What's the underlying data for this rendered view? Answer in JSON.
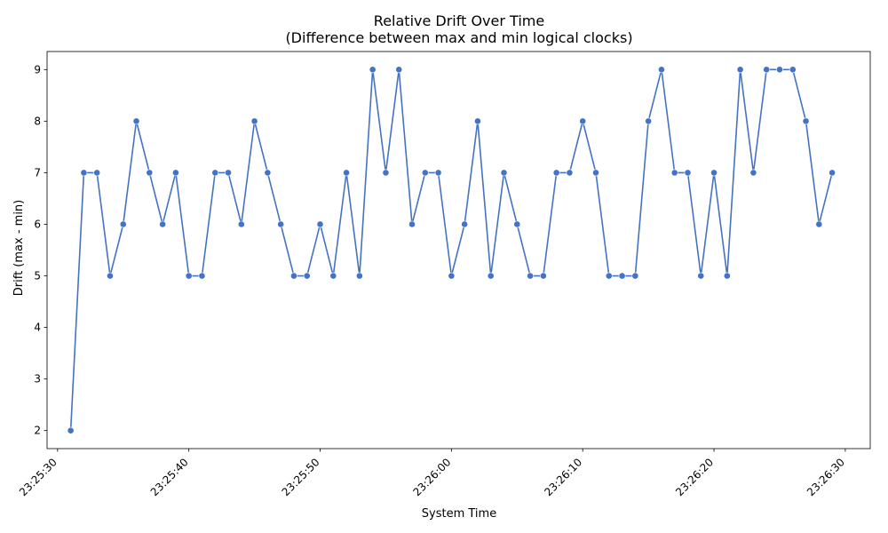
{
  "chart_data": {
    "type": "line",
    "title": "Relative Drift Over Time",
    "subtitle": "(Difference between max and min logical clocks)",
    "xlabel": "System Time",
    "ylabel": "Drift (max - min)",
    "x_tick_labels": [
      "23:25:30",
      "23:25:40",
      "23:25:50",
      "23:26:00",
      "23:26:10",
      "23:26:20",
      "23:26:30"
    ],
    "x_tick_values": [
      "23:25:30",
      "23:25:40",
      "23:25:50",
      "23:26:00",
      "23:26:10",
      "23:26:20",
      "23:26:30"
    ],
    "xlim": [
      "23:25:29.2",
      "23:26:31.9"
    ],
    "y_ticks": [
      2,
      3,
      4,
      5,
      6,
      7,
      8,
      9
    ],
    "ylim": [
      1.65,
      9.35
    ],
    "grid": false,
    "line_color": "#4472C4",
    "marker": "circle",
    "series": [
      {
        "x": [
          "23:25:31",
          "23:25:32",
          "23:25:33",
          "23:25:34",
          "23:25:35",
          "23:25:36",
          "23:25:37",
          "23:25:38",
          "23:25:39",
          "23:25:40",
          "23:25:41",
          "23:25:42",
          "23:25:43",
          "23:25:44",
          "23:25:45",
          "23:25:46",
          "23:25:47",
          "23:25:48",
          "23:25:49",
          "23:25:50",
          "23:25:51",
          "23:25:52",
          "23:25:53",
          "23:25:54",
          "23:25:55",
          "23:25:56",
          "23:25:57",
          "23:25:58",
          "23:25:59",
          "23:26:00",
          "23:26:01",
          "23:26:02",
          "23:26:03",
          "23:26:04",
          "23:26:05",
          "23:26:06",
          "23:26:07",
          "23:26:08",
          "23:26:09",
          "23:26:10",
          "23:26:11",
          "23:26:12",
          "23:26:13",
          "23:26:14",
          "23:26:15",
          "23:26:16",
          "23:26:17",
          "23:26:18",
          "23:26:19",
          "23:26:20",
          "23:26:21",
          "23:26:22",
          "23:26:23",
          "23:26:24",
          "23:26:25",
          "23:26:26",
          "23:26:27",
          "23:26:28",
          "23:26:29"
        ],
        "y": [
          2,
          7,
          7,
          5,
          6,
          8,
          7,
          6,
          7,
          5,
          5,
          7,
          7,
          6,
          8,
          7,
          6,
          5,
          5,
          6,
          5,
          7,
          5,
          9,
          7,
          9,
          6,
          7,
          7,
          5,
          6,
          8,
          5,
          7,
          6,
          5,
          5,
          7,
          7,
          8,
          7,
          5,
          5,
          5,
          8,
          9,
          7,
          7,
          5,
          7,
          5,
          9,
          7,
          9,
          9,
          9,
          8,
          6,
          7
        ]
      }
    ]
  }
}
